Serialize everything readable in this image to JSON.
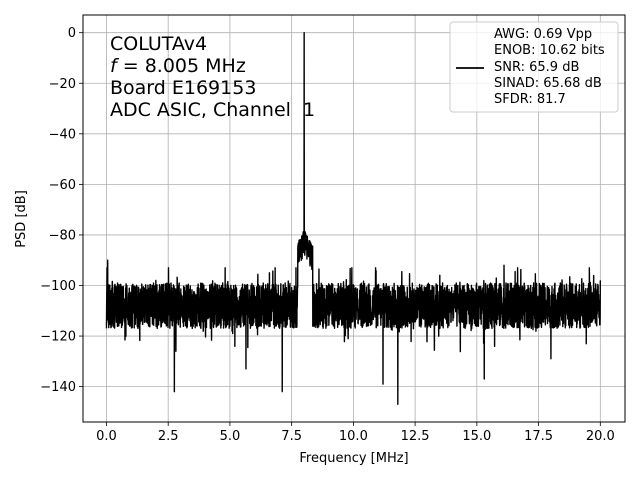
{
  "chart_data": {
    "type": "line",
    "title": "",
    "xlabel": "Frequency [MHz]",
    "ylabel": "PSD [dB]",
    "xlim": [
      -0.95,
      21.0
    ],
    "ylim": [
      -154,
      7
    ],
    "x_ticks": [
      0.0,
      2.5,
      5.0,
      7.5,
      10.0,
      12.5,
      15.0,
      17.5,
      20.0
    ],
    "x_tick_labels": [
      "0.0",
      "2.5",
      "5.0",
      "7.5",
      "10.0",
      "12.5",
      "15.0",
      "17.5",
      "20.0"
    ],
    "y_ticks": [
      0,
      -20,
      -40,
      -60,
      -80,
      -100,
      -120,
      -140
    ],
    "y_tick_labels": [
      "0",
      "−20",
      "−40",
      "−60",
      "−80",
      "−100",
      "−120",
      "−140"
    ],
    "grid": true,
    "series_color": "#000000",
    "annotations": [
      {
        "text": "COLUTAv4",
        "italic_prefix": ""
      },
      {
        "text": " = 8.005 MHz",
        "italic_prefix": "f"
      },
      {
        "text": "Board E169153",
        "italic_prefix": ""
      },
      {
        "text": "ADC ASIC, Channel  1",
        "italic_prefix": ""
      }
    ],
    "legend": {
      "placement": "top-right",
      "lines": [
        "AWG: 0.69 Vpp",
        "ENOB: 10.62 bits",
        "SNR: 65.9 dB",
        "SINAD: 65.68 dB",
        "SFDR: 81.7"
      ]
    },
    "series": [
      {
        "noise_floor_db": -108,
        "noise_range_db": [
          -122,
          -95
        ],
        "peak": {
          "x": 8.005,
          "y": 0
        },
        "skirt": {
          "x_range": [
            7.75,
            8.35
          ],
          "y_top": -83
        },
        "start_spike": {
          "x": 0.05,
          "y": -90
        },
        "end_spike": {
          "x": 20.0,
          "y": -98
        },
        "dips": [
          {
            "x": 2.75,
            "y": -142
          },
          {
            "x": 5.65,
            "y": -133
          },
          {
            "x": 7.12,
            "y": -142
          },
          {
            "x": 11.2,
            "y": -139
          },
          {
            "x": 11.8,
            "y": -147
          },
          {
            "x": 15.3,
            "y": -137
          },
          {
            "x": 18.0,
            "y": -129
          }
        ],
        "spurs": [
          {
            "x": 2.0,
            "y": -98
          },
          {
            "x": 6.6,
            "y": -95
          },
          {
            "x": 13.5,
            "y": -96
          },
          {
            "x": 16.1,
            "y": -92
          },
          {
            "x": 17.3,
            "y": -99
          }
        ]
      }
    ]
  }
}
